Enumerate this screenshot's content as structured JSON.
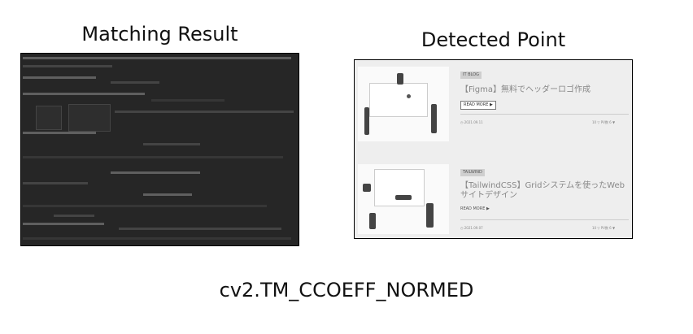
{
  "figure": {
    "left_title": "Matching Result",
    "right_title": "Detected Point",
    "caption": "cv2.TM_CCOEFF_NORMED"
  },
  "detected": {
    "card1": {
      "tag": "IT BLOG",
      "title": "【Figma】無料でヘッダーロゴ作成",
      "read_more": "READ MORE ▶",
      "date": "◷ 2021.09.11",
      "views": "10 ▽ PV数 6 ▼"
    },
    "card2": {
      "tag": "TAILWIND",
      "title": "【TailwindCSS】Gridシステムを使ったWebサイトデザイン",
      "read_more": "READ MORE ▶",
      "date": "◷ 2021.09.07",
      "views": "10 ▽ PV数 6 ▼"
    }
  }
}
